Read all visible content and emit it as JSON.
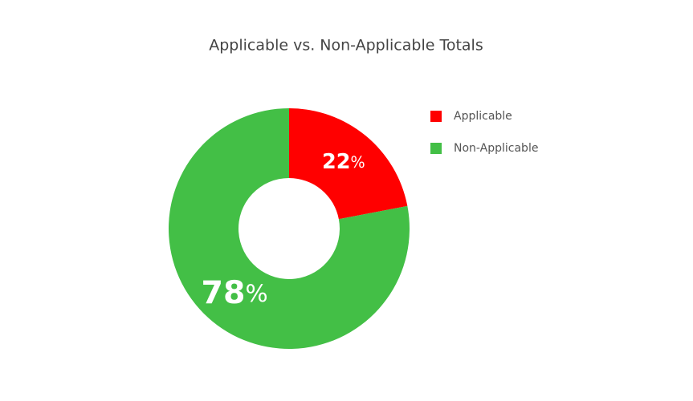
{
  "chart_data": {
    "type": "pie",
    "title": "Applicable vs. Non-Applicable Totals",
    "categories": [
      "Applicable",
      "Non-Applicable"
    ],
    "values": [
      22,
      78
    ],
    "value_labels": [
      "22%",
      "78%"
    ],
    "colors": [
      "#ff0000",
      "#43bf46"
    ],
    "hole": true,
    "legend": "top-right"
  }
}
